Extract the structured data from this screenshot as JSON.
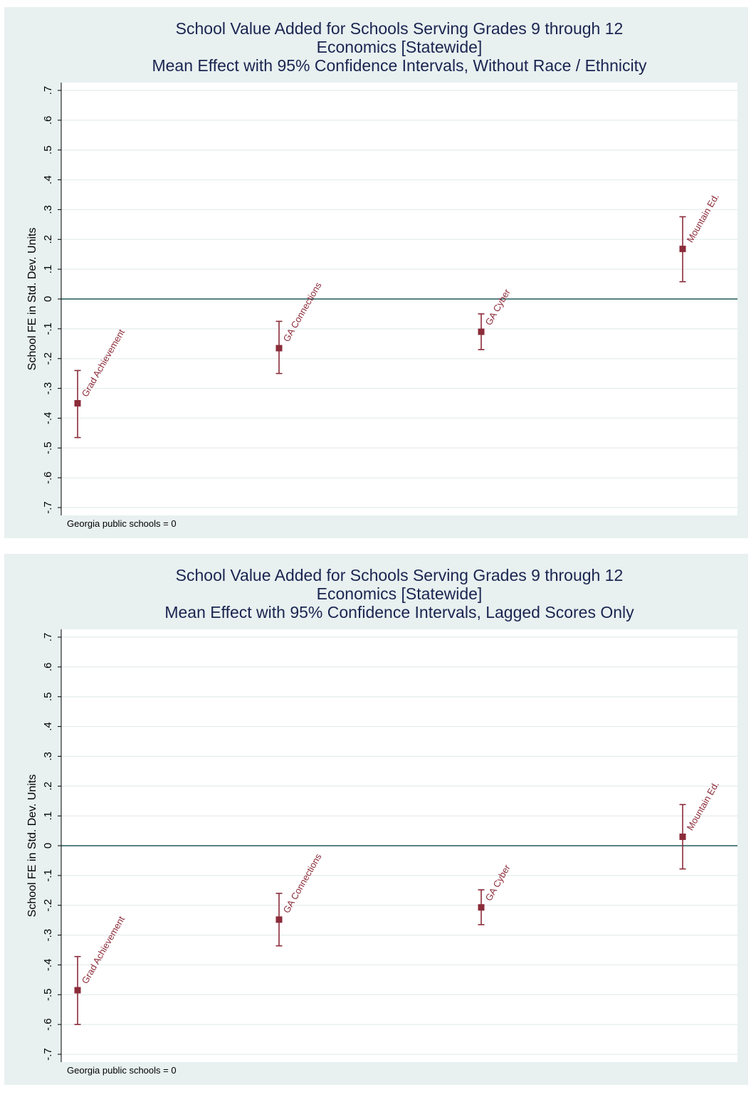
{
  "chart_data": [
    {
      "type": "scatter",
      "title_lines": [
        "School Value Added for Schools Serving Grades 9 through 12",
        "Economics [Statewide]",
        "Mean Effect with 95% Confidence Intervals, Without Race / Ethnicity"
      ],
      "ylabel": "School FE in Std. Dev. Units",
      "xlabel": "",
      "ylim": [
        -0.7,
        0.7
      ],
      "yticks": [
        0.7,
        0.6,
        0.5,
        0.4,
        0.3,
        0.2,
        0.1,
        0,
        -0.1,
        -0.2,
        -0.3,
        -0.4,
        -0.5,
        -0.6,
        -0.7
      ],
      "ytick_labels": [
        ".7",
        ".6",
        ".5",
        ".4",
        ".3",
        ".2",
        ".1",
        "0",
        "-.1",
        "-.2",
        "-.3",
        "-.4",
        "-.5",
        "-.6",
        "-.7"
      ],
      "reference_line": 0,
      "grid": true,
      "note": "Georgia public schools = 0",
      "points": [
        {
          "label": "Grad Achievement",
          "estimate": -0.35,
          "lower": -0.465,
          "upper": -0.24
        },
        {
          "label": "GA Connections",
          "estimate": -0.165,
          "lower": -0.25,
          "upper": -0.075
        },
        {
          "label": "GA Cyber",
          "estimate": -0.11,
          "lower": -0.17,
          "upper": -0.05
        },
        {
          "label": "Mountain Ed.",
          "estimate": 0.168,
          "lower": 0.058,
          "upper": 0.276
        }
      ],
      "colors": {
        "marker": "#8b2c3a",
        "zero_line": "#1f5a5a",
        "title": "#1a2550",
        "plot_bg": "#ffffff",
        "panel_bg": "#e8f0f0",
        "grid": "#e4ecec"
      }
    },
    {
      "type": "scatter",
      "title_lines": [
        "School Value Added for Schools Serving Grades 9 through 12",
        "Economics [Statewide]",
        "Mean Effect with 95% Confidence Intervals, Lagged Scores Only"
      ],
      "ylabel": "School FE in Std. Dev. Units",
      "xlabel": "",
      "ylim": [
        -0.7,
        0.7
      ],
      "yticks": [
        0.7,
        0.6,
        0.5,
        0.4,
        0.3,
        0.2,
        0.1,
        0,
        -0.1,
        -0.2,
        -0.3,
        -0.4,
        -0.5,
        -0.6,
        -0.7
      ],
      "ytick_labels": [
        ".7",
        ".6",
        ".5",
        ".4",
        ".3",
        ".2",
        ".1",
        "0",
        "-.1",
        "-.2",
        "-.3",
        "-.4",
        "-.5",
        "-.6",
        "-.7"
      ],
      "reference_line": 0,
      "grid": true,
      "note": "Georgia public schools = 0",
      "points": [
        {
          "label": "Grad Achievement",
          "estimate": -0.485,
          "lower": -0.6,
          "upper": -0.372
        },
        {
          "label": "GA Connections",
          "estimate": -0.248,
          "lower": -0.336,
          "upper": -0.16
        },
        {
          "label": "GA Cyber",
          "estimate": -0.207,
          "lower": -0.265,
          "upper": -0.148
        },
        {
          "label": "Mountain Ed.",
          "estimate": 0.03,
          "lower": -0.078,
          "upper": 0.138
        }
      ],
      "colors": {
        "marker": "#8b2c3a",
        "zero_line": "#1f5a5a",
        "title": "#1a2550",
        "plot_bg": "#ffffff",
        "panel_bg": "#e8f0f0",
        "grid": "#e4ecec"
      }
    }
  ]
}
